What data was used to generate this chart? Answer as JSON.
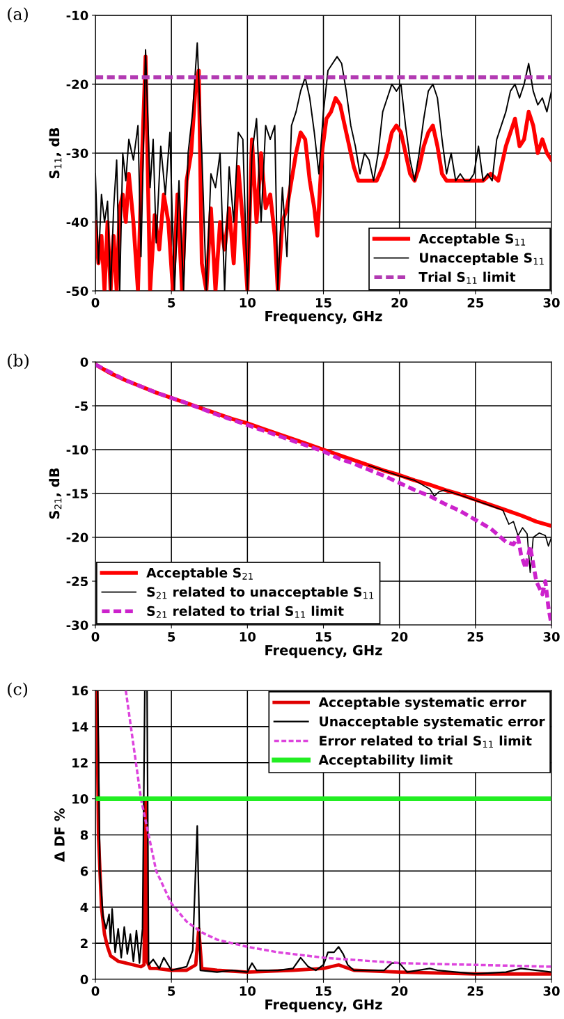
{
  "chart_data": [
    {
      "type": "line",
      "title": "(a)",
      "xlabel": "Frequency, GHz",
      "ylabel": "S$_{11}$, dB",
      "xlim": [
        0,
        30
      ],
      "xticks": [
        0,
        5,
        10,
        15,
        20,
        25,
        30
      ],
      "ylim": [
        -50,
        -10
      ],
      "yticks": [
        -50,
        -40,
        -30,
        -20,
        -10
      ],
      "grid": true,
      "legend": "bottom right",
      "series": [
        {
          "name": "Acceptable S$_{11}$",
          "color": "#ff0000",
          "line_style": "solid",
          "x": [
            0,
            0.2,
            0.4,
            0.6,
            0.8,
            1.0,
            1.2,
            1.4,
            1.6,
            1.8,
            2.0,
            2.2,
            2.5,
            2.8,
            3.0,
            3.3,
            3.6,
            3.9,
            4.2,
            4.5,
            4.8,
            5.1,
            5.4,
            5.7,
            6.0,
            6.3,
            6.6,
            6.8,
            7.0,
            7.3,
            7.6,
            7.9,
            8.2,
            8.5,
            8.8,
            9.1,
            9.4,
            9.7,
            10.0,
            10.3,
            10.6,
            10.9,
            11.2,
            11.5,
            11.8,
            12.0,
            12.3,
            12.6,
            12.9,
            13.2,
            13.5,
            13.8,
            14.1,
            14.4,
            14.6,
            14.9,
            15.2,
            15.5,
            15.8,
            16.1,
            16.4,
            16.7,
            17.0,
            17.3,
            17.6,
            18.5,
            18.9,
            19.2,
            19.5,
            19.8,
            20.1,
            20.4,
            20.7,
            21.0,
            21.3,
            21.6,
            21.9,
            22.2,
            22.5,
            22.8,
            23.1,
            23.5,
            25.5,
            26.0,
            26.5,
            27.0,
            27.3,
            27.6,
            27.9,
            28.2,
            28.5,
            28.8,
            29.1,
            29.4,
            29.7,
            30
          ],
          "values": [
            -40,
            -46,
            -42,
            -50,
            -40,
            -50,
            -42,
            -50,
            -38,
            -36,
            -40,
            -33,
            -40,
            -50,
            -35,
            -16,
            -50,
            -39,
            -44,
            -36,
            -40,
            -50,
            -36,
            -50,
            -34,
            -30,
            -20,
            -18,
            -46,
            -50,
            -38,
            -50,
            -40,
            -44,
            -38,
            -46,
            -32,
            -40,
            -50,
            -28,
            -40,
            -30,
            -38,
            -36,
            -42,
            -50,
            -40,
            -38,
            -34,
            -30,
            -27,
            -28,
            -34,
            -38,
            -42,
            -30,
            -25,
            -24,
            -22,
            -23,
            -26,
            -29,
            -32,
            -34,
            -34,
            -34,
            -32,
            -30,
            -27,
            -26,
            -27,
            -30,
            -33,
            -34,
            -32,
            -29,
            -27,
            -26,
            -29,
            -33,
            -34,
            -34,
            -34,
            -33,
            -34,
            -29,
            -27,
            -25,
            -29,
            -28,
            -24,
            -26,
            -30,
            -28,
            -30,
            -31
          ]
        },
        {
          "name": "Unacceptable S$_{11}$",
          "color": "#000000",
          "line_style": "solid",
          "x": [
            0,
            0.2,
            0.4,
            0.6,
            0.8,
            1.0,
            1.2,
            1.4,
            1.6,
            1.8,
            2.0,
            2.2,
            2.5,
            2.8,
            3.0,
            3.3,
            3.6,
            3.8,
            4.0,
            4.3,
            4.6,
            4.9,
            5.2,
            5.5,
            5.8,
            6.1,
            6.4,
            6.7,
            7.0,
            7.3,
            7.6,
            7.9,
            8.2,
            8.5,
            8.8,
            9.1,
            9.4,
            9.7,
            10.0,
            10.3,
            10.6,
            10.9,
            11.2,
            11.5,
            11.8,
            12.0,
            12.3,
            12.6,
            12.9,
            13.2,
            13.5,
            13.8,
            14.1,
            14.4,
            14.7,
            15.0,
            15.3,
            15.6,
            15.9,
            16.2,
            16.5,
            16.8,
            17.1,
            17.4,
            17.7,
            18.0,
            18.3,
            18.6,
            18.9,
            19.2,
            19.5,
            19.8,
            20.1,
            20.4,
            20.7,
            21.0,
            21.3,
            21.6,
            21.9,
            22.2,
            22.5,
            22.8,
            23.1,
            23.4,
            23.7,
            24.0,
            24.3,
            24.6,
            24.9,
            25.2,
            25.5,
            25.8,
            26.1,
            26.4,
            26.7,
            27.0,
            27.3,
            27.6,
            27.9,
            28.2,
            28.5,
            28.8,
            29.1,
            29.4,
            29.7,
            30
          ],
          "values": [
            -33,
            -46,
            -36,
            -40,
            -37,
            -50,
            -38,
            -31,
            -50,
            -30,
            -34,
            -28,
            -31,
            -26,
            -45,
            -15,
            -35,
            -28,
            -43,
            -29,
            -36,
            -27,
            -50,
            -34,
            -50,
            -30,
            -24,
            -14,
            -30,
            -50,
            -33,
            -35,
            -30,
            -50,
            -32,
            -40,
            -27,
            -28,
            -50,
            -30,
            -25,
            -40,
            -26,
            -28,
            -26,
            -50,
            -35,
            -45,
            -26,
            -24,
            -21,
            -19,
            -22,
            -27,
            -33,
            -24,
            -18,
            -17,
            -16,
            -17,
            -21,
            -26,
            -29,
            -33,
            -30,
            -31,
            -34,
            -30,
            -24,
            -22,
            -20,
            -21,
            -20,
            -26,
            -31,
            -34,
            -30,
            -25,
            -21,
            -20,
            -22,
            -28,
            -33,
            -30,
            -34,
            -33,
            -34,
            -34,
            -33,
            -29,
            -34,
            -33,
            -34,
            -28,
            -26,
            -24,
            -21,
            -20,
            -22,
            -20,
            -17,
            -21,
            -23,
            -22,
            -24,
            -21
          ]
        },
        {
          "name": "Trial S$_{11}$ limit",
          "color": "#b23ab2",
          "line_style": "dashed",
          "x": [
            0,
            30
          ],
          "values": [
            -19,
            -19
          ]
        }
      ]
    },
    {
      "type": "line",
      "title": "(b)",
      "xlabel": "Frequency, GHz",
      "ylabel": "S$_{21}$, dB",
      "xlim": [
        0,
        30
      ],
      "xticks": [
        0,
        5,
        10,
        15,
        20,
        25,
        30
      ],
      "ylim": [
        -30,
        0
      ],
      "yticks": [
        -30,
        -25,
        -20,
        -15,
        -10,
        -5,
        0
      ],
      "grid": true,
      "legend": "bottom left",
      "series": [
        {
          "name": "Acceptable S$_{21}$",
          "color": "#ff0000",
          "line_style": "solid",
          "x": [
            0,
            1,
            2,
            3,
            4,
            5,
            6,
            7,
            8,
            9,
            10,
            11,
            12,
            13,
            14,
            15,
            16,
            17,
            18,
            19,
            20,
            21,
            22,
            23,
            24,
            25,
            26,
            27,
            28,
            29,
            30
          ],
          "values": [
            -0.3,
            -1.3,
            -2.1,
            -2.8,
            -3.5,
            -4.1,
            -4.7,
            -5.3,
            -5.9,
            -6.5,
            -7.0,
            -7.6,
            -8.2,
            -8.8,
            -9.4,
            -10.0,
            -10.6,
            -11.2,
            -11.8,
            -12.4,
            -12.9,
            -13.5,
            -14.0,
            -14.6,
            -15.1,
            -15.7,
            -16.3,
            -16.9,
            -17.5,
            -18.2,
            -18.7
          ]
        },
        {
          "name": "S$_{21}$ related to unacceptable S$_{11}$",
          "color": "#000000",
          "line_style": "solid",
          "x": [
            18,
            20,
            21,
            22,
            22.3,
            22.6,
            23,
            24,
            25,
            26,
            26.8,
            27.2,
            27.5,
            27.8,
            28.1,
            28.4,
            28.6,
            28.8,
            29.2,
            29.6,
            29.8,
            30
          ],
          "values": [
            -11.8,
            -13.0,
            -13.5,
            -14.5,
            -15.3,
            -14.8,
            -14.6,
            -15.2,
            -15.8,
            -16.4,
            -16.9,
            -18.5,
            -18.2,
            -19.8,
            -18.9,
            -19.6,
            -24,
            -20,
            -19.5,
            -19.8,
            -21,
            -20
          ]
        },
        {
          "name": "S$_{21}$ related to trial S$_{11}$ limit",
          "color": "#cc22cc",
          "line_style": "dashed",
          "x": [
            0,
            2,
            4,
            6,
            8,
            10,
            12,
            14,
            15,
            16,
            17,
            18,
            19,
            20,
            21,
            22,
            23,
            24,
            25,
            26,
            27,
            27.5,
            27.8,
            28,
            28.3,
            28.6,
            29,
            29.4,
            29.6,
            29.8,
            30
          ],
          "values": [
            -0.3,
            -2.1,
            -3.5,
            -4.7,
            -6.0,
            -7.2,
            -8.4,
            -9.6,
            -10.2,
            -11,
            -11.6,
            -12.3,
            -13,
            -13.8,
            -14.6,
            -15.3,
            -16.2,
            -17,
            -18,
            -19,
            -20.5,
            -20.8,
            -20,
            -22,
            -23.5,
            -21,
            -25,
            -26.5,
            -25,
            -28,
            -30
          ]
        }
      ]
    },
    {
      "type": "line",
      "title": "(c)",
      "xlabel": "Frequency, GHz",
      "ylabel": "Δ DF %",
      "xlim": [
        0,
        30
      ],
      "xticks": [
        0,
        5,
        10,
        15,
        20,
        25,
        30
      ],
      "ylim": [
        0,
        16
      ],
      "yticks": [
        0,
        2,
        4,
        6,
        8,
        10,
        12,
        14,
        16
      ],
      "grid": true,
      "legend": "top right",
      "series": [
        {
          "name": "Acceptable systematic error",
          "color": "#e00000",
          "line_style": "solid",
          "x": [
            0,
            0.1,
            0.2,
            0.4,
            0.6,
            0.8,
            1,
            1.5,
            2,
            2.5,
            3,
            3.2,
            3.3,
            3.4,
            3.6,
            4,
            5,
            6,
            6.6,
            6.8,
            7.0,
            8,
            10,
            13,
            15,
            16,
            17,
            20,
            25,
            30
          ],
          "values": [
            16,
            16,
            8,
            4,
            2.5,
            1.8,
            1.3,
            1.0,
            0.9,
            0.8,
            0.7,
            0.8,
            10,
            1.0,
            0.6,
            0.6,
            0.5,
            0.5,
            0.8,
            2.8,
            0.6,
            0.5,
            0.4,
            0.5,
            0.6,
            0.8,
            0.5,
            0.4,
            0.3,
            0.3
          ]
        },
        {
          "name": "Unacceptable systematic error",
          "color": "#000000",
          "line_style": "solid",
          "x": [
            0,
            0.15,
            0.3,
            0.5,
            0.7,
            0.9,
            1.0,
            1.1,
            1.3,
            1.5,
            1.7,
            1.9,
            2.1,
            2.3,
            2.5,
            2.7,
            2.9,
            3.1,
            3.25,
            3.4,
            3.5,
            3.8,
            4.2,
            4.5,
            5.0,
            5.5,
            6.0,
            6.4,
            6.7,
            6.9,
            8,
            9,
            10,
            10.3,
            10.6,
            12,
            13,
            13.5,
            14,
            14.5,
            15,
            15.3,
            15.7,
            16,
            16.3,
            16.6,
            17,
            19,
            19.5,
            20,
            20.5,
            22,
            22.5,
            25,
            27,
            28,
            30
          ],
          "values": [
            16,
            16,
            6,
            3.5,
            2.8,
            3.6,
            2.0,
            3.9,
            1.5,
            2.8,
            1.2,
            2.9,
            1.4,
            2.5,
            1.0,
            2.7,
            0.9,
            2.8,
            16,
            16,
            0.8,
            1.1,
            0.6,
            1.2,
            0.5,
            0.6,
            0.7,
            1.6,
            8.5,
            0.5,
            0.4,
            0.5,
            0.4,
            0.9,
            0.5,
            0.5,
            0.6,
            1.2,
            0.7,
            0.5,
            0.8,
            1.5,
            1.5,
            1.8,
            1.4,
            0.8,
            0.5,
            0.5,
            0.9,
            0.9,
            0.4,
            0.6,
            0.5,
            0.3,
            0.4,
            0.6,
            0.4
          ]
        },
        {
          "name": "Error related to trial S$_{11}$ limit",
          "color": "#dd44dd",
          "line_style": "dashed",
          "x": [
            2,
            2.5,
            3,
            3.5,
            4,
            5,
            6,
            7,
            8,
            10,
            12,
            15,
            20,
            25,
            30
          ],
          "values": [
            16,
            13,
            10,
            8,
            6,
            4.2,
            3.2,
            2.6,
            2.2,
            1.8,
            1.5,
            1.2,
            0.9,
            0.8,
            0.7
          ]
        },
        {
          "name": "Acceptability limit",
          "color": "#22ee22",
          "line_style": "solid",
          "x": [
            0,
            30
          ],
          "values": [
            10,
            10
          ]
        }
      ]
    }
  ]
}
